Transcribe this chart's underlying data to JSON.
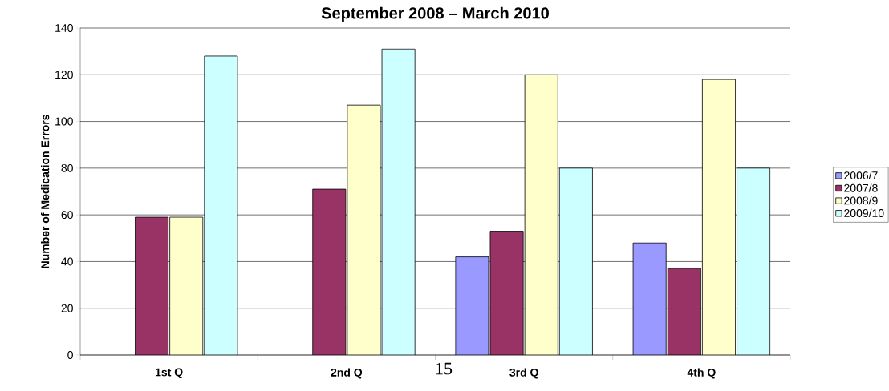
{
  "chart_data": {
    "type": "bar",
    "title": "September 2008 – March 2010",
    "ylabel": "Number of Medication Errors",
    "categories": [
      "1st Q",
      "2nd Q",
      "3rd Q",
      "4th Q"
    ],
    "series": [
      {
        "name": "2006/7",
        "color": "#9999ff",
        "values": [
          null,
          null,
          42,
          48
        ]
      },
      {
        "name": "2007/8",
        "color": "#993366",
        "values": [
          59,
          71,
          53,
          37
        ]
      },
      {
        "name": "2008/9",
        "color": "#ffffcc",
        "values": [
          59,
          107,
          120,
          118
        ]
      },
      {
        "name": "2009/10",
        "color": "#ccffff",
        "values": [
          128,
          131,
          80,
          80
        ]
      }
    ],
    "ylim": [
      0,
      140
    ],
    "yticks": [
      0,
      20,
      40,
      60,
      80,
      100,
      120,
      140
    ],
    "grid": "y",
    "legend": "right",
    "annotations": [
      "15"
    ]
  }
}
